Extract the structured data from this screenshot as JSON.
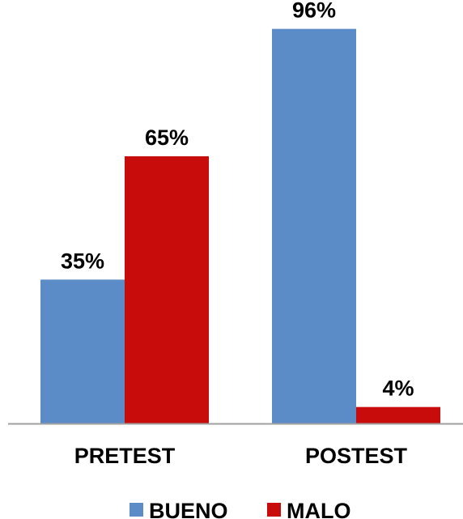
{
  "chart_data": {
    "type": "bar",
    "categories": [
      "PRETEST",
      "POSTEST"
    ],
    "series": [
      {
        "name": "BUENO",
        "values": [
          35,
          96
        ],
        "labels": [
          "35%",
          "96%"
        ],
        "color": "#5b8cc8"
      },
      {
        "name": "MALO",
        "values": [
          65,
          4
        ],
        "labels": [
          "65%",
          "4%"
        ],
        "color": "#c80c0c"
      }
    ],
    "ylim": [
      0,
      100
    ],
    "unit": "%",
    "grid": false,
    "legend_position": "bottom",
    "axis_color": "#a0a0a0"
  }
}
